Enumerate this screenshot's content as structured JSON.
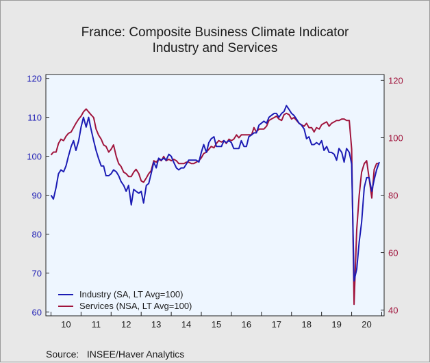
{
  "chart_data": {
    "type": "line",
    "title": "France: Composite Business Climate Indicator",
    "subtitle": "Industry and Services",
    "source": "Source:   INSEE/Haver Analytics",
    "x_tick_labels": [
      "10",
      "11",
      "12",
      "13",
      "14",
      "15",
      "16",
      "17",
      "18",
      "19",
      "20"
    ],
    "y_left": {
      "lim": [
        59,
        121
      ],
      "ticks": [
        60,
        70,
        80,
        90,
        100,
        110,
        120
      ],
      "color": "#1c1cb4"
    },
    "y_right": {
      "lim": [
        38,
        122
      ],
      "ticks": [
        40,
        60,
        80,
        100,
        120
      ],
      "color": "#a0143c"
    },
    "grid": false,
    "legend": {
      "position": "bottom-left"
    },
    "series": [
      {
        "name": "Industry (SA, LT Avg=100)",
        "axis": "left",
        "color": "#1c1cb4",
        "x": [
          2010.0,
          2010.08,
          2010.17,
          2010.25,
          2010.33,
          2010.42,
          2010.5,
          2010.58,
          2010.67,
          2010.75,
          2010.83,
          2010.92,
          2011.0,
          2011.08,
          2011.17,
          2011.25,
          2011.33,
          2011.42,
          2011.5,
          2011.58,
          2011.67,
          2011.75,
          2011.83,
          2011.92,
          2012.0,
          2012.08,
          2012.17,
          2012.25,
          2012.33,
          2012.42,
          2012.5,
          2012.58,
          2012.67,
          2012.75,
          2012.83,
          2012.92,
          2013.0,
          2013.08,
          2013.17,
          2013.25,
          2013.33,
          2013.42,
          2013.5,
          2013.58,
          2013.67,
          2013.75,
          2013.83,
          2013.92,
          2014.0,
          2014.08,
          2014.17,
          2014.25,
          2014.33,
          2014.42,
          2014.5,
          2014.58,
          2014.67,
          2014.75,
          2014.83,
          2014.92,
          2015.0,
          2015.08,
          2015.17,
          2015.25,
          2015.33,
          2015.42,
          2015.5,
          2015.58,
          2015.67,
          2015.75,
          2015.83,
          2015.92,
          2016.0,
          2016.08,
          2016.17,
          2016.25,
          2016.33,
          2016.42,
          2016.5,
          2016.58,
          2016.67,
          2016.75,
          2016.83,
          2016.92,
          2017.0,
          2017.08,
          2017.17,
          2017.25,
          2017.33,
          2017.42,
          2017.5,
          2017.58,
          2017.67,
          2017.75,
          2017.83,
          2017.92,
          2018.0,
          2018.08,
          2018.17,
          2018.25,
          2018.33,
          2018.42,
          2018.5,
          2018.58,
          2018.67,
          2018.75,
          2018.83,
          2018.92,
          2019.0,
          2019.08,
          2019.17,
          2019.25,
          2019.33,
          2019.42,
          2019.5,
          2019.58,
          2019.67,
          2019.75,
          2019.83,
          2019.92,
          2020.0,
          2020.08,
          2020.17,
          2020.25,
          2020.33,
          2020.42,
          2020.5,
          2020.58,
          2020.67,
          2020.75,
          2020.83,
          2020.92
        ],
        "values": [
          90,
          89,
          92,
          95.5,
          96.5,
          96,
          97.5,
          100,
          102.5,
          104,
          101.5,
          104,
          107.5,
          110,
          107.5,
          110,
          107,
          104,
          101.5,
          99.5,
          97.5,
          97.5,
          95,
          95,
          95.5,
          96.5,
          96,
          95,
          93.5,
          92.5,
          91,
          92.5,
          87.5,
          91.5,
          91,
          90.5,
          91,
          88,
          92.5,
          93,
          95.5,
          98.5,
          97,
          99.5,
          99,
          99.5,
          99,
          100.5,
          100,
          98.5,
          97,
          96.5,
          97,
          97,
          98,
          99,
          99,
          99,
          99,
          98.5,
          101,
          103,
          101,
          103.5,
          104.5,
          105,
          102.5,
          102.5,
          102.5,
          104,
          103.5,
          104,
          103.5,
          102,
          102,
          102,
          104,
          102.5,
          102.5,
          105,
          105.5,
          106,
          106,
          108,
          108.5,
          109,
          108.5,
          110,
          110.5,
          111,
          111,
          110,
          111,
          111.5,
          113,
          112,
          111,
          110.5,
          109.5,
          108.5,
          108,
          107,
          104.5,
          105,
          103,
          103,
          103.5,
          103,
          104,
          101.5,
          102.5,
          101,
          101,
          100.5,
          99,
          102,
          101,
          98.5,
          102,
          101,
          98,
          68,
          71,
          78,
          83,
          92,
          94.5,
          94.5,
          91,
          94,
          96.5,
          98.5
        ]
      },
      {
        "name": "Services (NSA, LT Avg=100)",
        "axis": "right",
        "color": "#a0143c",
        "x": [
          2010.0,
          2010.08,
          2010.17,
          2010.25,
          2010.33,
          2010.42,
          2010.5,
          2010.58,
          2010.67,
          2010.75,
          2010.83,
          2010.92,
          2011.0,
          2011.08,
          2011.17,
          2011.25,
          2011.33,
          2011.42,
          2011.5,
          2011.58,
          2011.67,
          2011.75,
          2011.83,
          2011.92,
          2012.0,
          2012.08,
          2012.17,
          2012.25,
          2012.33,
          2012.42,
          2012.5,
          2012.58,
          2012.67,
          2012.75,
          2012.83,
          2012.92,
          2013.0,
          2013.08,
          2013.17,
          2013.25,
          2013.33,
          2013.42,
          2013.5,
          2013.58,
          2013.67,
          2013.75,
          2013.83,
          2013.92,
          2014.0,
          2014.08,
          2014.17,
          2014.25,
          2014.33,
          2014.42,
          2014.5,
          2014.58,
          2014.67,
          2014.75,
          2014.83,
          2014.92,
          2015.0,
          2015.08,
          2015.17,
          2015.25,
          2015.33,
          2015.42,
          2015.5,
          2015.58,
          2015.67,
          2015.75,
          2015.83,
          2015.92,
          2016.0,
          2016.08,
          2016.17,
          2016.25,
          2016.33,
          2016.42,
          2016.5,
          2016.58,
          2016.67,
          2016.75,
          2016.83,
          2016.92,
          2017.0,
          2017.08,
          2017.17,
          2017.25,
          2017.33,
          2017.42,
          2017.5,
          2017.58,
          2017.67,
          2017.75,
          2017.83,
          2017.92,
          2018.0,
          2018.08,
          2018.17,
          2018.25,
          2018.33,
          2018.42,
          2018.5,
          2018.58,
          2018.67,
          2018.75,
          2018.83,
          2018.92,
          2019.0,
          2019.08,
          2019.17,
          2019.25,
          2019.33,
          2019.42,
          2019.5,
          2019.58,
          2019.67,
          2019.75,
          2019.83,
          2019.92,
          2020.0,
          2020.08,
          2020.17,
          2020.25,
          2020.33,
          2020.42,
          2020.5,
          2020.58,
          2020.67,
          2020.75,
          2020.83,
          2020.92
        ],
        "values": [
          94,
          95,
          95,
          98,
          99.5,
          99,
          100.5,
          101.5,
          102,
          103.5,
          105,
          106.5,
          107.5,
          109,
          110,
          109,
          108,
          107,
          103,
          101,
          99.5,
          97.5,
          97,
          95,
          96,
          97.5,
          93.5,
          91,
          90,
          88,
          87.5,
          86.5,
          86.5,
          88,
          89,
          87.5,
          85,
          84.5,
          86,
          87.5,
          88.5,
          92,
          91.5,
          92.5,
          92,
          93.5,
          92,
          92.5,
          92,
          92.5,
          92,
          91,
          91,
          91,
          91.5,
          91.5,
          91,
          91,
          91.5,
          92,
          93,
          94.5,
          95,
          96,
          97,
          96.5,
          98,
          99,
          98.5,
          99,
          98,
          99.5,
          99,
          99.5,
          101,
          100,
          101,
          101,
          101,
          101,
          101,
          103.5,
          102,
          103,
          103,
          103,
          104,
          106,
          106.5,
          107,
          107.5,
          106.5,
          106,
          108,
          108.5,
          108,
          106.5,
          107,
          106,
          105,
          104.5,
          104,
          105,
          103.5,
          103.5,
          102,
          103.5,
          103,
          104.5,
          105,
          105.5,
          104,
          105,
          105.5,
          106,
          106,
          106.5,
          106.5,
          106,
          106,
          96,
          42,
          68,
          80,
          88,
          91,
          92,
          86,
          79,
          89,
          91,
          91
        ]
      }
    ]
  }
}
